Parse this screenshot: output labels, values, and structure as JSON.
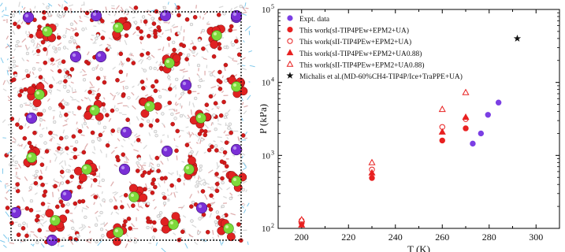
{
  "chart_data": {
    "type": "scatter",
    "xlabel": "T (K)",
    "ylabel": "P (kPa)",
    "xlim": [
      190,
      310
    ],
    "ylim": [
      100,
      100000
    ],
    "yscale": "log",
    "x_ticks": [
      200,
      220,
      240,
      260,
      280,
      300
    ],
    "y_ticks": [
      {
        "value": 100,
        "label": "10",
        "exp": "2"
      },
      {
        "value": 1000,
        "label": "10",
        "exp": "3"
      },
      {
        "value": 10000,
        "label": "10",
        "exp": "4"
      },
      {
        "value": 100000,
        "label": "10",
        "exp": "5"
      }
    ],
    "legend_position": "top-left",
    "series": [
      {
        "name": "Expt. data",
        "marker": "circle",
        "filled": true,
        "color": "#7b3fe4",
        "points": [
          [
            273,
            1450
          ],
          [
            276.5,
            2000
          ],
          [
            279.5,
            3600
          ],
          [
            284,
            5300
          ]
        ]
      },
      {
        "name": "This work(sI-TIP4PEw+EPM2+UA)",
        "marker": "circle",
        "filled": true,
        "color": "#e82020",
        "points": [
          [
            200,
            118
          ],
          [
            230,
            490
          ],
          [
            260,
            1600
          ],
          [
            270,
            2350
          ]
        ]
      },
      {
        "name": "This work(sII-TIP4PEw+EPM2+UA)",
        "marker": "circle",
        "filled": false,
        "color": "#e82020",
        "points": [
          [
            200,
            128
          ],
          [
            230,
            640
          ],
          [
            260,
            2450
          ],
          [
            270,
            3150
          ]
        ]
      },
      {
        "name": "This work(sI-TIP4PEw+EPM2+UA0.88)",
        "marker": "triangle",
        "filled": true,
        "color": "#e82020",
        "points": [
          [
            200,
            112
          ],
          [
            230,
            580
          ],
          [
            260,
            2100
          ],
          [
            270,
            3350
          ]
        ]
      },
      {
        "name": "This work(sII-TIP4PEw+EPM2+UA0.88)",
        "marker": "triangle",
        "filled": false,
        "color": "#e82020",
        "points": [
          [
            200,
            132
          ],
          [
            230,
            800
          ],
          [
            260,
            4300
          ],
          [
            270,
            7300
          ]
        ]
      },
      {
        "name": "Michalis et al.(MD-60%CH4-TIP4P/Ice+TraPPE+UA)",
        "marker": "star",
        "filled": true,
        "color": "#111111",
        "points": [
          [
            292,
            40000
          ]
        ]
      }
    ]
  }
}
